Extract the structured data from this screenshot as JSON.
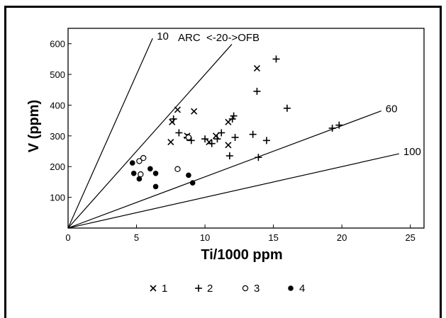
{
  "chart_data": {
    "type": "scatter",
    "title": "",
    "xlabel": "Ti/1000 ppm",
    "ylabel": "V (ppm)",
    "xlim": [
      0,
      26
    ],
    "ylim": [
      0,
      650
    ],
    "xticks": [
      0,
      5,
      10,
      15,
      20,
      25
    ],
    "yticks": [
      100,
      200,
      300,
      400,
      500,
      600
    ],
    "grid": false,
    "reference_lines": [
      {
        "label": "10",
        "slope": 100
      },
      {
        "label": "",
        "slope": 50
      },
      {
        "label": "60",
        "slope": 16.67
      },
      {
        "label": "100",
        "slope": 10
      }
    ],
    "annotations": [
      {
        "text": "ARC  <-20->OFB"
      }
    ],
    "series": [
      {
        "name": "1",
        "marker": "x",
        "points": [
          [
            7.5,
            280
          ],
          [
            7.6,
            345
          ],
          [
            8.0,
            385
          ],
          [
            8.7,
            300
          ],
          [
            9.2,
            380
          ],
          [
            10.3,
            280
          ],
          [
            10.8,
            300
          ],
          [
            11.7,
            345
          ],
          [
            11.7,
            270
          ],
          [
            13.8,
            520
          ]
        ]
      },
      {
        "name": "2",
        "marker": "+",
        "points": [
          [
            7.7,
            355
          ],
          [
            8.1,
            310
          ],
          [
            8.7,
            295
          ],
          [
            9.0,
            285
          ],
          [
            10.0,
            290
          ],
          [
            10.5,
            275
          ],
          [
            10.9,
            290
          ],
          [
            11.2,
            310
          ],
          [
            11.8,
            235
          ],
          [
            12.0,
            355
          ],
          [
            12.1,
            365
          ],
          [
            12.2,
            295
          ],
          [
            13.5,
            305
          ],
          [
            13.8,
            445
          ],
          [
            13.9,
            230
          ],
          [
            14.5,
            285
          ],
          [
            15.2,
            550
          ],
          [
            16.0,
            390
          ],
          [
            19.3,
            325
          ],
          [
            19.8,
            335
          ]
        ]
      },
      {
        "name": "3",
        "marker": "open-circle",
        "points": [
          [
            5.2,
            218
          ],
          [
            5.3,
            175
          ],
          [
            5.5,
            228
          ],
          [
            8.0,
            192
          ],
          [
            8.8,
            295
          ]
        ]
      },
      {
        "name": "4",
        "marker": "filled-circle",
        "points": [
          [
            4.7,
            212
          ],
          [
            4.8,
            178
          ],
          [
            5.2,
            160
          ],
          [
            6.0,
            193
          ],
          [
            6.4,
            178
          ],
          [
            6.4,
            135
          ],
          [
            8.8,
            172
          ],
          [
            9.1,
            147
          ]
        ]
      }
    ],
    "legend": {
      "placement": "bottom",
      "entries": [
        {
          "marker": "x",
          "label": "1"
        },
        {
          "marker": "+",
          "label": "2"
        },
        {
          "marker": "open-circle",
          "label": "3"
        },
        {
          "marker": "filled-circle",
          "label": "4"
        }
      ]
    }
  }
}
